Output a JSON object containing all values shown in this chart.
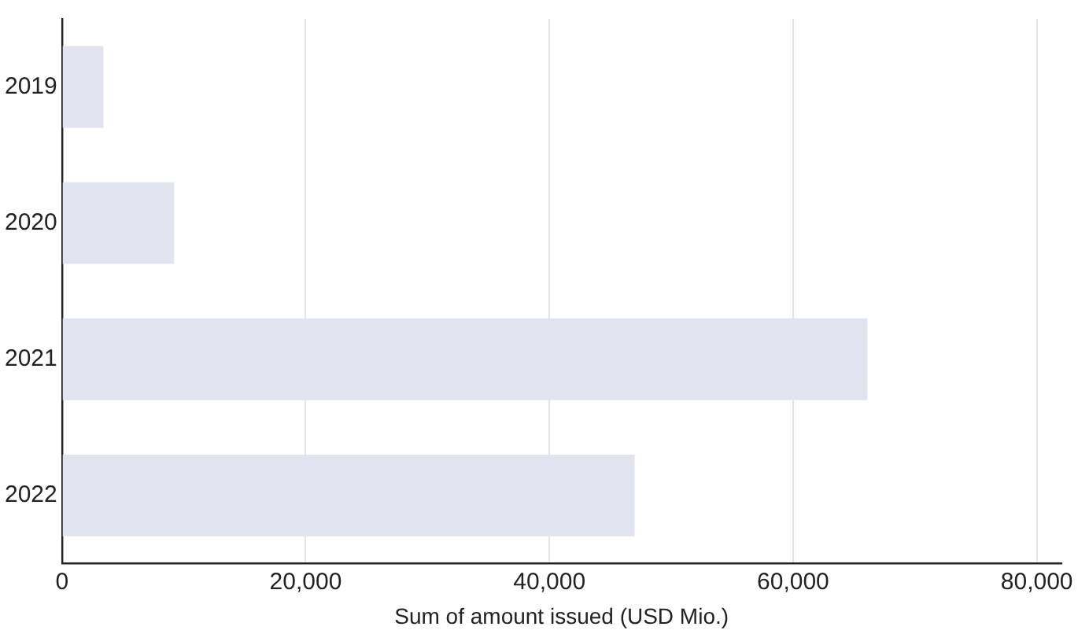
{
  "chart_data": {
    "type": "bar",
    "orientation": "horizontal",
    "xlabel": "Sum of amount issued (USD Mio.)",
    "categories": [
      "2019",
      "2020",
      "2021",
      "2022"
    ],
    "values": [
      3400,
      9200,
      66100,
      47000
    ],
    "color": "#e1e3ef",
    "xlim": [
      0,
      82000
    ],
    "xticks": [
      {
        "value": 0,
        "label": "0"
      },
      {
        "value": 20000,
        "label": "20,000"
      },
      {
        "value": 40000,
        "label": "40,000"
      },
      {
        "value": 60000,
        "label": "60,000"
      },
      {
        "value": 80000,
        "label": "80,000"
      }
    ],
    "grid": "x"
  }
}
